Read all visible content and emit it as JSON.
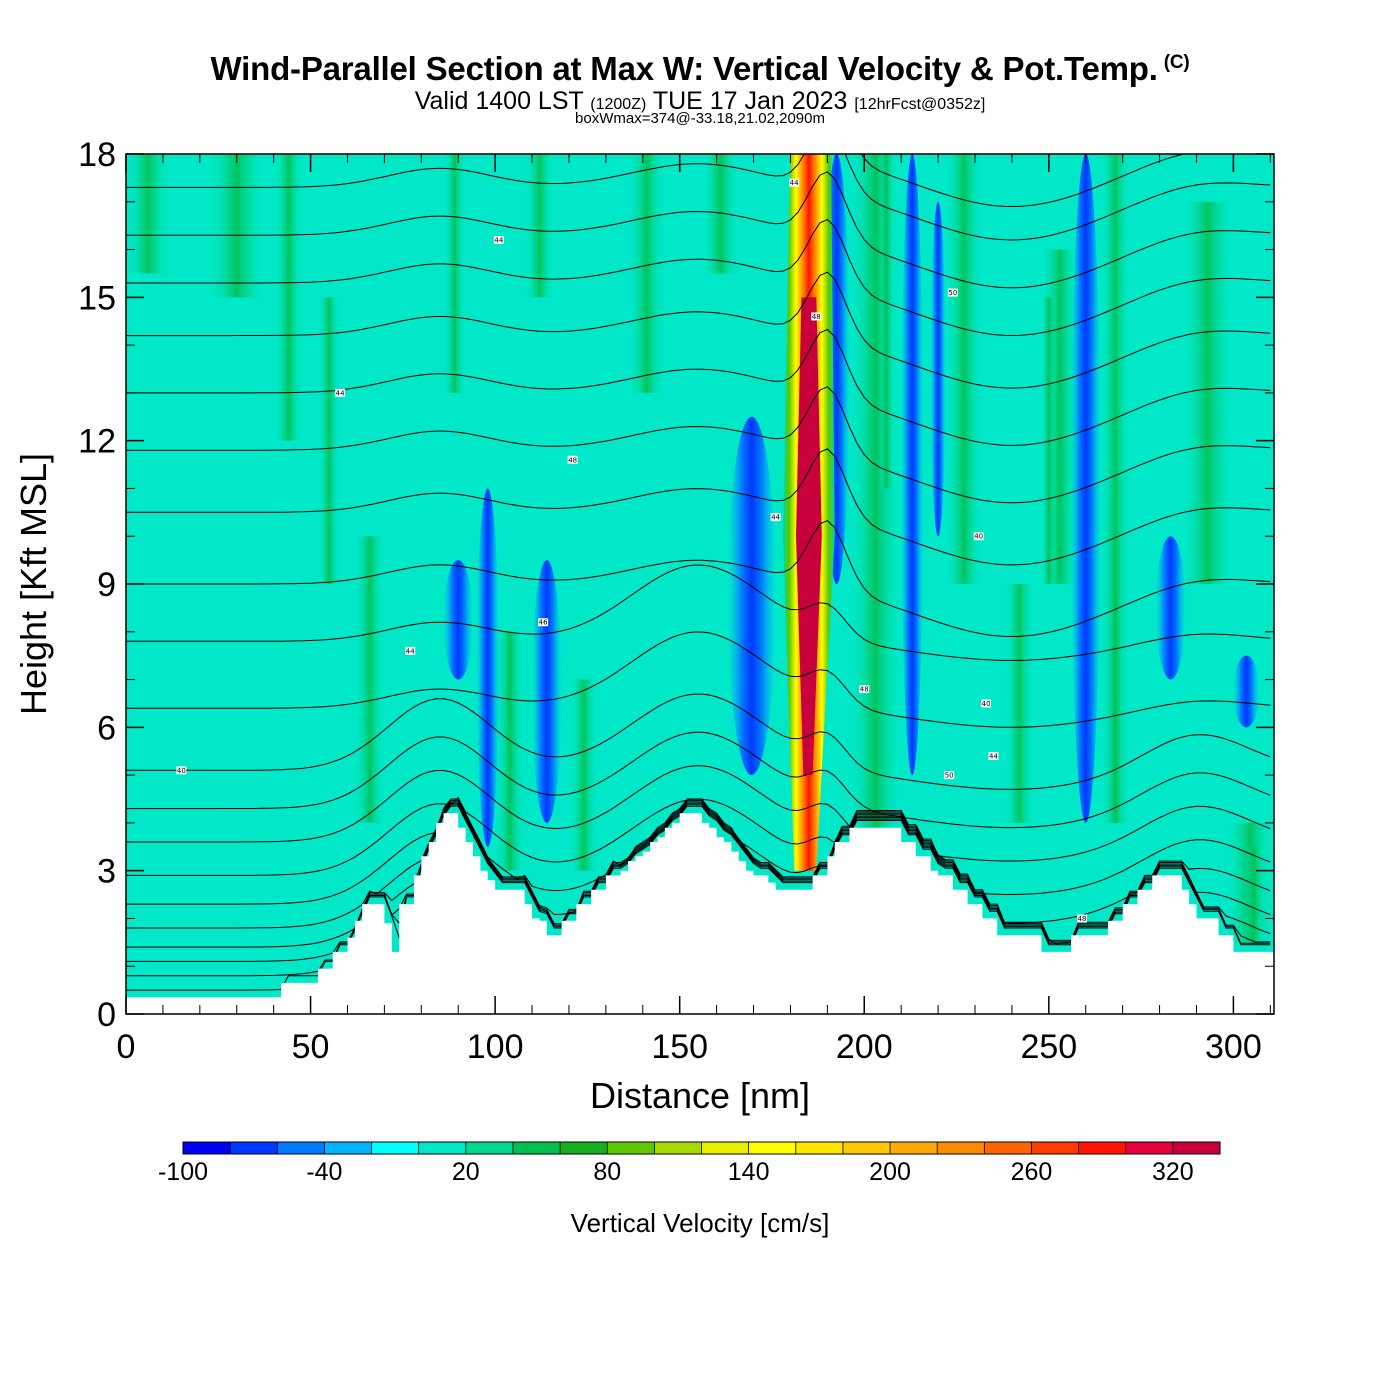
{
  "title": {
    "main": "Wind-Parallel Section at Max W: Vertical Velocity & Pot.Temp.",
    "copyright_mark": "(C)",
    "valid_prefix": "Valid 1400 LST",
    "utc_time": "(1200Z)",
    "date": "TUE 17 Jan 2023",
    "forecast": "[12hrFcst@0352z]",
    "box_wmax": "boxWmax=374@-33.18,21.02,2090m"
  },
  "chart_data": {
    "type": "heatmap",
    "title": "Wind-Parallel Section at Max W: Vertical Velocity & Pot.Temp.",
    "xlabel": "Distance [nm]",
    "ylabel": "Height [Kft MSL]",
    "xlim": [
      0,
      311
    ],
    "ylim": [
      0,
      18
    ],
    "xticks": [
      0,
      50,
      100,
      150,
      200,
      250,
      300
    ],
    "yticks": [
      0,
      3,
      6,
      9,
      12,
      15,
      18
    ],
    "colorbar": {
      "title": "Vertical Velocity [cm/s]",
      "levels": [
        -100,
        -80,
        -60,
        -40,
        -20,
        0,
        20,
        40,
        60,
        80,
        100,
        120,
        140,
        160,
        180,
        200,
        220,
        240,
        260,
        280,
        300,
        320,
        340,
        360
      ],
      "tick_labels": [
        "-100",
        "-40",
        "20",
        "80",
        "140",
        "200",
        "260",
        "320"
      ],
      "tick_values": [
        -100,
        -40,
        20,
        80,
        140,
        200,
        260,
        320
      ],
      "colors": [
        "#0000f0",
        "#0038ff",
        "#0078ff",
        "#00b4ff",
        "#00ffff",
        "#00e8c8",
        "#00d890",
        "#00c050",
        "#18b020",
        "#60c800",
        "#a8dc00",
        "#e8f000",
        "#ffff00",
        "#ffe600",
        "#ffc800",
        "#ffaa00",
        "#ff8c00",
        "#ff6400",
        "#ff3c00",
        "#ff1400",
        "#e6003c",
        "#c8003c"
      ]
    },
    "background_value": 0,
    "updraft_core": {
      "x": 185,
      "peak_w": 374,
      "peak_height_kft": 10
    },
    "downdraft_bands_x": [
      98,
      114,
      170,
      192,
      212,
      260,
      283,
      304
    ],
    "terrain_profile": {
      "x": [
        0,
        40,
        42,
        48,
        52,
        56,
        60,
        62,
        64,
        66,
        68,
        70,
        72,
        74,
        76,
        78,
        80,
        82,
        84,
        86,
        88,
        90,
        92,
        94,
        96,
        98,
        100,
        102,
        104,
        106,
        108,
        110,
        112,
        114,
        116,
        118,
        120,
        122,
        124,
        126,
        128,
        130,
        132,
        134,
        136,
        138,
        140,
        142,
        144,
        146,
        148,
        150,
        152,
        154,
        156,
        158,
        160,
        162,
        164,
        166,
        168,
        170,
        172,
        174,
        176,
        178,
        180,
        182,
        184,
        186,
        188,
        190,
        192,
        194,
        196,
        198,
        200,
        202,
        204,
        206,
        208,
        210,
        212,
        214,
        216,
        218,
        220,
        222,
        224,
        226,
        228,
        230,
        232,
        234,
        236,
        238,
        240,
        242,
        244,
        246,
        248,
        250,
        252,
        254,
        256,
        258,
        260,
        262,
        264,
        266,
        268,
        270,
        272,
        274,
        276,
        278,
        280,
        282,
        284,
        286,
        288,
        290,
        292,
        294,
        296,
        298,
        300,
        302,
        304,
        306,
        308,
        311
      ],
      "height_kft": [
        0.35,
        0.35,
        0.65,
        0.65,
        0.95,
        1.3,
        1.6,
        1.95,
        2.3,
        2.3,
        2.3,
        1.9,
        1.3,
        2.3,
        2.3,
        2.9,
        3.3,
        3.6,
        4.0,
        4.2,
        4.2,
        3.9,
        3.6,
        3.3,
        3.0,
        2.8,
        2.6,
        2.6,
        2.6,
        2.6,
        2.3,
        2.0,
        1.95,
        1.65,
        1.65,
        1.95,
        1.95,
        2.3,
        2.3,
        2.6,
        2.6,
        2.9,
        2.9,
        3.0,
        3.2,
        3.3,
        3.4,
        3.6,
        3.7,
        3.9,
        4.0,
        4.2,
        4.2,
        4.2,
        4.0,
        3.9,
        3.7,
        3.6,
        3.4,
        3.2,
        3.0,
        2.9,
        2.9,
        2.75,
        2.6,
        2.6,
        2.6,
        2.6,
        2.6,
        2.9,
        2.9,
        3.3,
        3.6,
        3.6,
        3.9,
        3.9,
        3.9,
        3.9,
        3.9,
        3.9,
        3.9,
        3.6,
        3.6,
        3.3,
        3.3,
        3.0,
        2.9,
        2.9,
        2.6,
        2.6,
        2.3,
        2.3,
        2.0,
        2.0,
        1.65,
        1.65,
        1.65,
        1.65,
        1.65,
        1.65,
        1.3,
        1.3,
        1.3,
        1.3,
        1.65,
        1.65,
        1.65,
        1.65,
        1.65,
        1.95,
        1.95,
        2.3,
        2.3,
        2.6,
        2.6,
        2.9,
        2.9,
        2.9,
        2.9,
        2.6,
        2.3,
        2.0,
        2.0,
        2.0,
        1.65,
        1.65,
        1.3,
        1.3,
        1.3,
        1.3,
        1.3,
        1.3
      ],
      "description": "Terrain cross-section (white area below surface)"
    },
    "isentrope_labels": [
      "40",
      "44",
      "44",
      "44",
      "46",
      "48",
      "44",
      "44",
      "48",
      "48",
      "50",
      "40",
      "50",
      "40",
      "44",
      "48"
    ]
  }
}
